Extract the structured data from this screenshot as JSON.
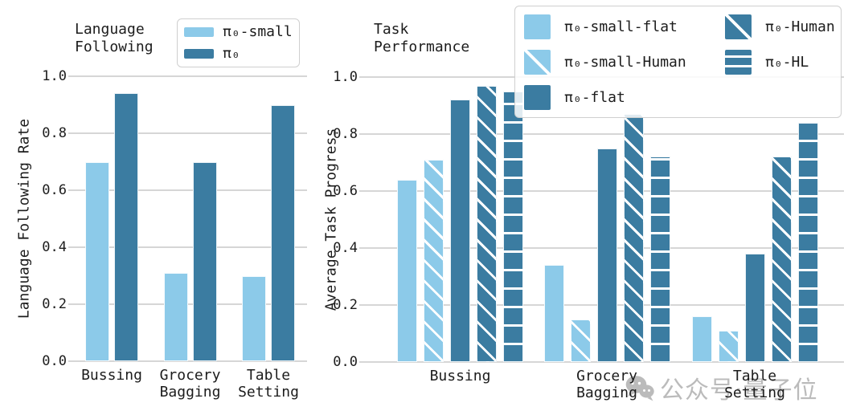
{
  "colors": {
    "series_light": "#8CCAE9",
    "series_dark": "#3B7CA1",
    "grid": "#d6d6d6",
    "text": "#1c1c1c",
    "watermark": "#ababab"
  },
  "watermark": {
    "label": "公众号·量子位",
    "icon": "wechat-icon"
  },
  "chart_data": [
    {
      "type": "bar",
      "title_lines": [
        "Language",
        "Following"
      ],
      "ylabel": "Language Following Rate",
      "ylim": [
        0.0,
        1.0
      ],
      "ytick_labels": [
        "0.0",
        "0.2",
        "0.4",
        "0.6",
        "0.8",
        "1.0"
      ],
      "grid": "horizontal",
      "legend_position": "upper-right",
      "categories": [
        [
          "Bussing"
        ],
        [
          "Grocery",
          "Bagging"
        ],
        [
          "Table",
          "Setting"
        ]
      ],
      "series": [
        {
          "name": "π₀-small",
          "color": "light",
          "hatch": "none",
          "values": [
            0.7,
            0.31,
            0.3
          ]
        },
        {
          "name": "π₀",
          "color": "dark",
          "hatch": "none",
          "values": [
            0.94,
            0.7,
            0.9
          ]
        }
      ]
    },
    {
      "type": "bar",
      "title_lines": [
        "Task",
        "Performance"
      ],
      "ylabel": "Average Task Progress",
      "ylim": [
        0.0,
        1.0
      ],
      "ytick_labels": [
        "0.0",
        "0.2",
        "0.4",
        "0.6",
        "0.8",
        "1.0"
      ],
      "grid": "horizontal",
      "legend_position": "upper-right-overlay",
      "categories": [
        [
          "Bussing"
        ],
        [
          "Grocery",
          "Bagging"
        ],
        [
          "Table",
          "Setting"
        ]
      ],
      "series": [
        {
          "name": "π₀-small-flat",
          "color": "light",
          "hatch": "none",
          "values": [
            0.64,
            0.34,
            0.16
          ]
        },
        {
          "name": "π₀-small-Human",
          "color": "light",
          "hatch": "diagonal",
          "values": [
            0.71,
            0.15,
            0.11
          ]
        },
        {
          "name": "π₀-flat",
          "color": "dark",
          "hatch": "none",
          "values": [
            0.92,
            0.75,
            0.38
          ]
        },
        {
          "name": "π₀-Human",
          "color": "dark",
          "hatch": "diagonal",
          "values": [
            0.97,
            0.87,
            0.72
          ]
        },
        {
          "name": "π₀-HL",
          "color": "dark",
          "hatch": "horizontal",
          "values": [
            0.95,
            0.72,
            0.84
          ]
        }
      ]
    }
  ]
}
